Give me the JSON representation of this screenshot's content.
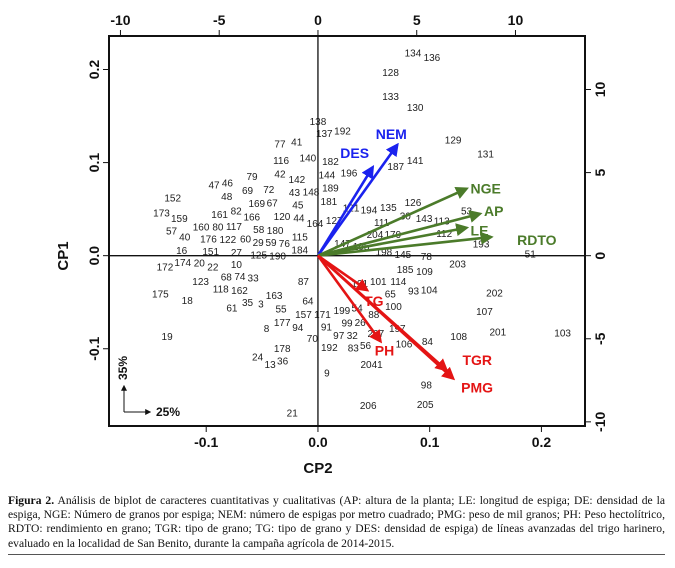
{
  "chart_data": {
    "type": "scatter",
    "subtype": "biplot",
    "xlabel": "CP2",
    "ylabel": "CP1",
    "xlim": [
      -0.187,
      0.239
    ],
    "ylim": [
      -0.183,
      0.236
    ],
    "x_ticks": [
      "-0.1",
      "0.0",
      "0.1",
      "0.2"
    ],
    "x_tick_values": [
      -0.1,
      0.0,
      0.1,
      0.2
    ],
    "y_ticks": [
      "-0.1",
      "0.0",
      "0.1",
      "0.2"
    ],
    "y_tick_values": [
      -0.1,
      0.0,
      0.1,
      0.2
    ],
    "top_axis": {
      "lim": [
        -10.58,
        13.52
      ],
      "ticks": [
        "-10",
        "-5",
        "0",
        "5",
        "10"
      ],
      "tick_values": [
        -10,
        -5,
        0,
        5,
        10
      ]
    },
    "right_axis": {
      "lim": [
        -10.25,
        13.22
      ],
      "ticks": [
        "-10",
        "-5",
        "0",
        "5",
        "10"
      ],
      "tick_values": [
        -10,
        -5,
        0,
        5,
        10
      ]
    },
    "variance": {
      "cp1": "35%",
      "cp2": "25%"
    },
    "colors": {
      "blue": "#1a22ee",
      "green": "#4b7b2a",
      "red": "#e41414"
    },
    "vectors": [
      {
        "name": "NEM",
        "x": 0.071,
        "y": 0.119,
        "color": "blue"
      },
      {
        "name": "DES",
        "x": 0.049,
        "y": 0.095,
        "color": "blue"
      },
      {
        "name": "NGE",
        "x": 0.133,
        "y": 0.072,
        "color": "green"
      },
      {
        "name": "AP",
        "x": 0.145,
        "y": 0.045,
        "color": "green"
      },
      {
        "name": "LE",
        "x": 0.133,
        "y": 0.03,
        "color": "green"
      },
      {
        "name": "RDTO",
        "x": 0.155,
        "y": 0.02,
        "color": "green"
      },
      {
        "name": "TG",
        "x": 0.044,
        "y": -0.037,
        "color": "red"
      },
      {
        "name": "PH",
        "x": 0.056,
        "y": -0.092,
        "color": "red"
      },
      {
        "name": "TGR",
        "x": 0.115,
        "y": -0.123,
        "color": "red"
      },
      {
        "name": "PMG",
        "x": 0.121,
        "y": -0.132,
        "color": "red"
      }
    ],
    "points": [
      [
        "77",
        -0.034,
        0.12
      ],
      [
        "41",
        -0.019,
        0.122
      ],
      [
        "116",
        -0.033,
        0.102
      ],
      [
        "140",
        -0.009,
        0.105
      ],
      [
        "42",
        -0.034,
        0.09
      ],
      [
        "142",
        -0.026,
        0.082
      ],
      [
        "79",
        -0.059,
        0.085
      ],
      [
        "47",
        -0.093,
        0.076
      ],
      [
        "46",
        -0.081,
        0.078
      ],
      [
        "48",
        -0.087,
        0.068
      ],
      [
        "69",
        -0.063,
        0.07
      ],
      [
        "72",
        -0.044,
        0.071
      ],
      [
        "67",
        -0.041,
        0.063
      ],
      [
        "169",
        -0.044,
        0.056
      ],
      [
        "43",
        -0.021,
        0.07
      ],
      [
        "45",
        -0.018,
        0.061
      ],
      [
        "148",
        -0.008,
        0.066
      ],
      [
        "120",
        -0.025,
        0.053
      ],
      [
        "44",
        -0.017,
        0.047
      ],
      [
        "152",
        -0.13,
        0.062
      ],
      [
        "173",
        -0.14,
        0.046
      ],
      [
        "159",
        -0.133,
        0.04
      ],
      [
        "57",
        -0.131,
        0.031
      ],
      [
        "161",
        -0.088,
        0.044
      ],
      [
        "82",
        -0.075,
        0.048
      ],
      [
        "166",
        -0.061,
        0.048
      ],
      [
        "117",
        -0.068,
        0.042
      ],
      [
        "58",
        -0.053,
        0.041
      ],
      [
        "80",
        -0.077,
        0.035
      ],
      [
        "60",
        -0.063,
        0.035
      ],
      [
        "160",
        -0.101,
        0.031
      ],
      [
        "176",
        -0.098,
        0.02
      ],
      [
        "122",
        -0.086,
        0.026
      ],
      [
        "29",
        -0.075,
        0.029
      ],
      [
        "180",
        -0.058,
        0.027
      ],
      [
        "59",
        -0.042,
        0.027
      ],
      [
        "125",
        -0.053,
        0.018
      ],
      [
        "76",
        -0.039,
        0.015
      ],
      [
        "115",
        -0.018,
        0.02
      ],
      [
        "40",
        -0.121,
        0.02
      ],
      [
        "16",
        -0.122,
        0.012
      ],
      [
        "151",
        -0.096,
        0.011
      ],
      [
        "27",
        -0.073,
        0.014
      ],
      [
        "190",
        -0.054,
        0.008
      ],
      [
        "184",
        -0.027,
        0.008
      ],
      [
        "164",
        -0.008,
        0.03
      ],
      [
        "174",
        -0.121,
        -0.001
      ],
      [
        "172",
        -0.128,
        -0.012
      ],
      [
        "20",
        -0.108,
        -0.008
      ],
      [
        "22",
        -0.103,
        -0.012
      ],
      [
        "10",
        -0.073,
        -0.001
      ],
      [
        "68",
        -0.082,
        -0.01
      ],
      [
        "123",
        -0.105,
        -0.028
      ],
      [
        "118",
        -0.087,
        -0.025
      ],
      [
        "74",
        -0.077,
        -0.02
      ],
      [
        "33",
        -0.067,
        -0.024
      ],
      [
        "162",
        -0.072,
        -0.033
      ],
      [
        "175",
        -0.141,
        -0.041
      ],
      [
        "18",
        -0.117,
        -0.048
      ],
      [
        "35",
        -0.063,
        -0.046
      ],
      [
        "3",
        -0.051,
        -0.052
      ],
      [
        "61",
        -0.077,
        -0.056
      ],
      [
        "163",
        -0.041,
        -0.043
      ],
      [
        "55",
        -0.033,
        -0.055
      ],
      [
        "177",
        -0.032,
        -0.063
      ],
      [
        "157",
        -0.013,
        -0.063
      ],
      [
        "64",
        -0.009,
        -0.051
      ],
      [
        "94",
        -0.027,
        -0.073
      ],
      [
        "8",
        -0.046,
        -0.078
      ],
      [
        "19",
        -0.135,
        -0.087
      ],
      [
        "178",
        -0.032,
        -0.1
      ],
      [
        "24",
        -0.054,
        -0.109
      ],
      [
        "13",
        -0.05,
        -0.117
      ],
      [
        "36",
        -0.037,
        -0.113
      ],
      [
        "21",
        -0.023,
        -0.169
      ],
      [
        "70",
        -0.005,
        -0.089
      ],
      [
        "9",
        0.008,
        -0.126
      ],
      [
        "87",
        -0.013,
        -0.028
      ],
      [
        "138",
        0.0,
        0.144
      ],
      [
        "134",
        0.085,
        0.218
      ],
      [
        "136",
        0.102,
        0.213
      ],
      [
        "128",
        0.065,
        0.197
      ],
      [
        "133",
        0.065,
        0.171
      ],
      [
        "130",
        0.087,
        0.159
      ],
      [
        "192",
        0.022,
        0.134
      ],
      [
        "137",
        0.02,
        0.131
      ],
      [
        "129",
        0.121,
        0.124
      ],
      [
        "131",
        0.15,
        0.109
      ],
      [
        "182",
        0.013,
        0.101
      ],
      [
        "141",
        0.087,
        0.102
      ],
      [
        "187",
        0.075,
        0.096
      ],
      [
        "144",
        0.008,
        0.089
      ],
      [
        "196",
        0.026,
        0.089
      ],
      [
        "189",
        0.004,
        0.077
      ],
      [
        "181",
        0.008,
        0.069
      ],
      [
        "126",
        0.085,
        0.057
      ],
      [
        "135",
        0.063,
        0.052
      ],
      [
        "30",
        0.071,
        0.047
      ],
      [
        "194",
        0.051,
        0.049
      ],
      [
        "121",
        0.035,
        0.051
      ],
      [
        "111",
        0.057,
        0.038
      ],
      [
        "143",
        0.095,
        0.04
      ],
      [
        "113",
        0.1,
        0.037
      ],
      [
        "112",
        0.113,
        0.03
      ],
      [
        "53",
        0.133,
        0.048
      ],
      [
        "127",
        0.011,
        0.04
      ],
      [
        "204",
        0.051,
        0.029
      ],
      [
        "179",
        0.067,
        0.025
      ],
      [
        "147",
        0.022,
        0.013
      ],
      [
        "195",
        0.035,
        0.012
      ],
      [
        "198",
        0.059,
        0.004
      ],
      [
        "145",
        0.076,
        0.001
      ],
      [
        "78",
        0.097,
        -0.001
      ],
      [
        "51",
        0.19,
        0.002
      ],
      [
        "203",
        0.125,
        -0.009
      ],
      [
        "185",
        0.078,
        -0.015
      ],
      [
        "109",
        0.09,
        -0.017
      ],
      [
        "193",
        0.146,
        0.019
      ],
      [
        "101",
        0.054,
        -0.028
      ],
      [
        "114",
        0.072,
        -0.028
      ],
      [
        "191",
        0.041,
        -0.03
      ],
      [
        "65",
        0.054,
        -0.035
      ],
      [
        "93",
        0.082,
        -0.038
      ],
      [
        "104",
        0.096,
        -0.037
      ],
      [
        "202",
        0.158,
        -0.04
      ],
      [
        "100",
        0.064,
        -0.044
      ],
      [
        "54",
        0.044,
        -0.056
      ],
      [
        "88",
        0.05,
        -0.061
      ],
      [
        "107",
        0.149,
        -0.06
      ],
      [
        "199",
        0.025,
        -0.059
      ],
      [
        "171",
        0.013,
        -0.061
      ],
      [
        "91",
        0.004,
        -0.068
      ],
      [
        "99",
        0.026,
        -0.068
      ],
      [
        "97",
        0.015,
        -0.086
      ],
      [
        "32",
        0.02,
        -0.075
      ],
      [
        "26",
        0.036,
        -0.072
      ],
      [
        "197",
        0.071,
        -0.078
      ],
      [
        "201",
        0.161,
        -0.082
      ],
      [
        "108",
        0.126,
        -0.087
      ],
      [
        "103",
        0.219,
        -0.083
      ],
      [
        "84",
        0.098,
        -0.092
      ],
      [
        "207",
        0.05,
        -0.086
      ],
      [
        "56",
        0.039,
        -0.09
      ],
      [
        "83",
        0.037,
        -0.095
      ],
      [
        "106",
        0.068,
        -0.095
      ],
      [
        "2041",
        0.048,
        -0.115
      ],
      [
        "98",
        0.097,
        -0.139
      ],
      [
        "205",
        0.096,
        -0.16
      ],
      [
        "206",
        0.045,
        -0.161
      ],
      [
        "192",
        0.003,
        -0.077
      ]
    ]
  },
  "caption": {
    "label": "Figura 2.",
    "text": "Análisis de biplot de caracteres  cuantitativas y cualitativas (AP: altura de la planta; LE: longitud  de espiga; DE: densidad de la espiga, NGE: Número de granos por espiga; NEM: número de espigas por metro cuadrado; PMG: peso de mil granos; PH: Peso hectolítrico, RDTO: rendimiento en grano; TGR: tipo de grano; TG: tipo de grano y DES: densidad de espiga) de líneas avanzadas del trigo harinero, evaluado en la localidad de San Benito, durante la campaña agrícola de 2014-2015."
  }
}
